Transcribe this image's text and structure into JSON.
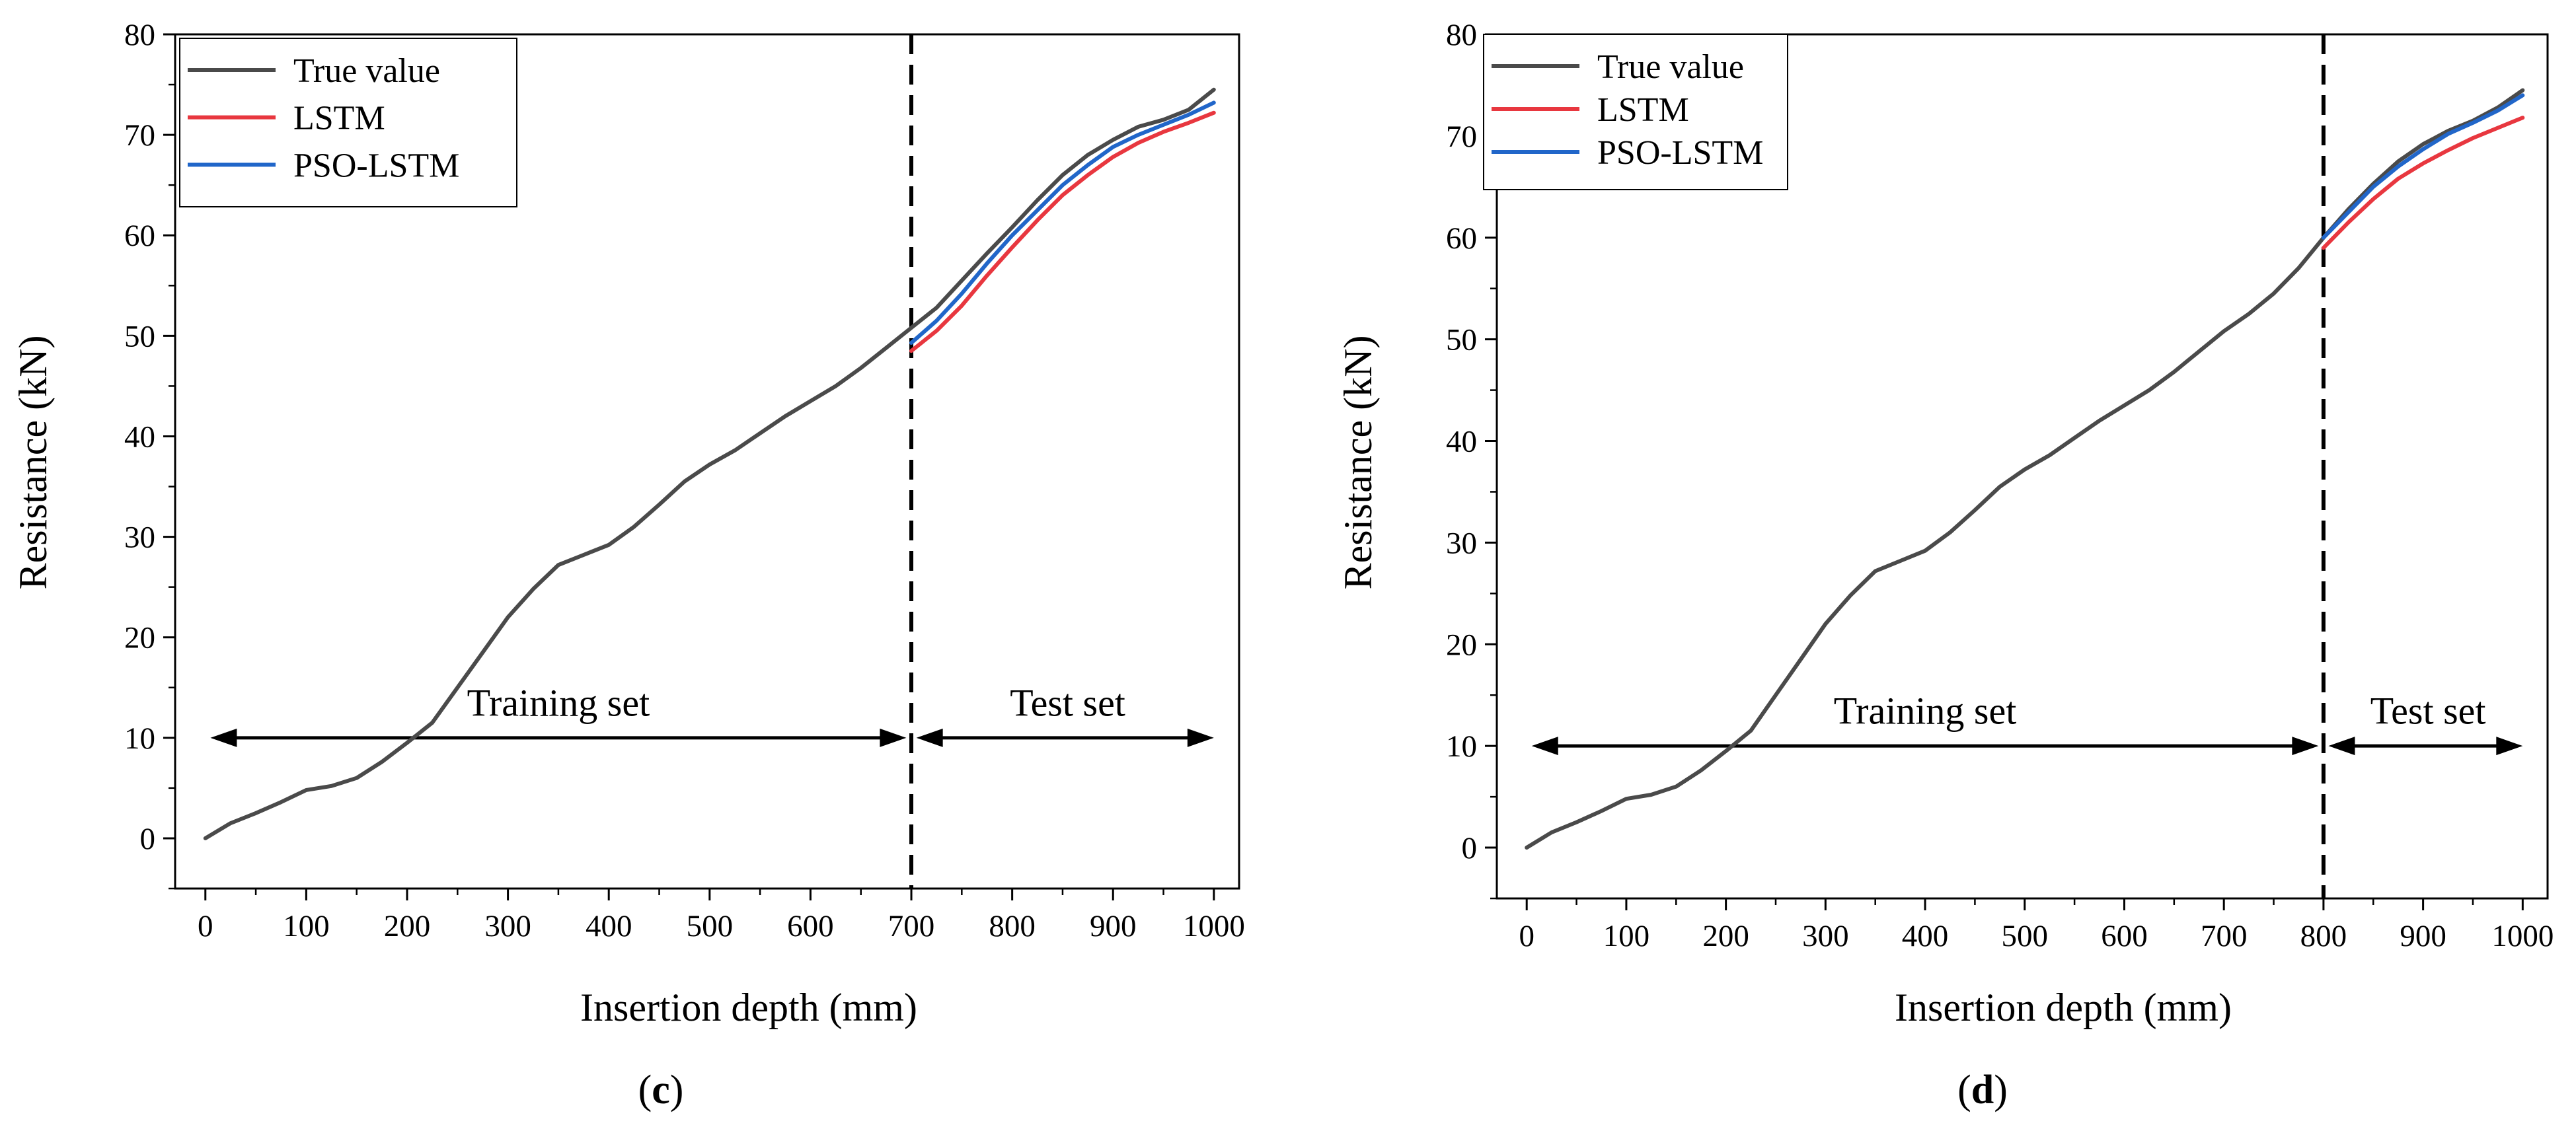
{
  "colors": {
    "true_value": "#4a4a4a",
    "lstm": "#e8373f",
    "pso_lstm": "#2166c9",
    "axis": "#000000"
  },
  "chart_data": [
    {
      "panel": "c",
      "panel_label": [
        "(",
        "c",
        ")"
      ],
      "type": "line",
      "xlabel": "Insertion depth (mm)",
      "ylabel": "Resistance (kN)",
      "xlim": [
        -30,
        1025
      ],
      "ylim": [
        -5,
        80
      ],
      "xticks": [
        0,
        100,
        200,
        300,
        400,
        500,
        600,
        700,
        800,
        900,
        1000
      ],
      "yticks": [
        0,
        10,
        20,
        30,
        40,
        50,
        60,
        70,
        80
      ],
      "legend": {
        "position": "top-left",
        "entries": [
          "True value",
          "LSTM",
          "PSO-LSTM"
        ]
      },
      "split_x": 700,
      "annotations": [
        {
          "text": "Training set",
          "x": 350,
          "y": 12.2,
          "arrow_from": 5,
          "arrow_to": 695,
          "arrow_y": 10
        },
        {
          "text": "Test set",
          "x": 855,
          "y": 12.2,
          "arrow_from": 705,
          "arrow_to": 1000,
          "arrow_y": 10
        }
      ],
      "series": [
        {
          "name": "True value",
          "x": [
            0,
            25,
            50,
            75,
            100,
            125,
            150,
            175,
            200,
            225,
            250,
            275,
            300,
            325,
            350,
            375,
            400,
            425,
            450,
            475,
            500,
            525,
            550,
            575,
            600,
            625,
            650,
            675,
            700,
            725,
            750,
            775,
            800,
            825,
            850,
            875,
            900,
            925,
            950,
            975,
            1000
          ],
          "y": [
            0,
            1.5,
            2.5,
            3.6,
            4.8,
            5.2,
            6.0,
            7.6,
            9.5,
            11.5,
            15.0,
            18.5,
            22.0,
            24.8,
            27.2,
            28.2,
            29.2,
            31.0,
            33.2,
            35.5,
            37.2,
            38.6,
            40.3,
            42.0,
            43.5,
            45.0,
            46.8,
            48.8,
            50.8,
            52.8,
            55.5,
            58.2,
            60.8,
            63.5,
            66.0,
            68.0,
            69.5,
            70.8,
            71.5,
            72.5,
            74.5
          ]
        },
        {
          "name": "LSTM",
          "x": [
            700,
            725,
            750,
            775,
            800,
            825,
            850,
            875,
            900,
            925,
            950,
            975,
            1000
          ],
          "y": [
            48.5,
            50.5,
            53.0,
            56.0,
            58.8,
            61.5,
            64.0,
            66.0,
            67.8,
            69.2,
            70.3,
            71.2,
            72.2
          ]
        },
        {
          "name": "PSO-LSTM",
          "x": [
            700,
            725,
            750,
            775,
            800,
            825,
            850,
            875,
            900,
            925,
            950,
            975,
            1000
          ],
          "y": [
            49.3,
            51.5,
            54.2,
            57.2,
            60.0,
            62.5,
            65.0,
            67.0,
            68.8,
            70.0,
            71.0,
            72.0,
            73.2
          ]
        }
      ]
    },
    {
      "panel": "d",
      "panel_label": [
        "(",
        "d",
        ")"
      ],
      "type": "line",
      "xlabel": "Insertion depth (mm)",
      "ylabel": "Resistance (kN)",
      "xlim": [
        -30,
        1025
      ],
      "ylim": [
        -5,
        80
      ],
      "xticks": [
        0,
        100,
        200,
        300,
        400,
        500,
        600,
        700,
        800,
        900,
        1000
      ],
      "yticks": [
        0,
        10,
        20,
        30,
        40,
        50,
        60,
        70,
        80
      ],
      "legend": {
        "position": "top-left",
        "entries": [
          "True value",
          "LSTM",
          "PSO-LSTM"
        ]
      },
      "split_x": 800,
      "annotations": [
        {
          "text": "Training set",
          "x": 400,
          "y": 12.2,
          "arrow_from": 5,
          "arrow_to": 795,
          "arrow_y": 10
        },
        {
          "text": "Test set",
          "x": 905,
          "y": 12.2,
          "arrow_from": 805,
          "arrow_to": 1000,
          "arrow_y": 10
        }
      ],
      "series": [
        {
          "name": "True value",
          "x": [
            0,
            25,
            50,
            75,
            100,
            125,
            150,
            175,
            200,
            225,
            250,
            275,
            300,
            325,
            350,
            375,
            400,
            425,
            450,
            475,
            500,
            525,
            550,
            575,
            600,
            625,
            650,
            675,
            700,
            725,
            750,
            775,
            800,
            825,
            850,
            875,
            900,
            925,
            950,
            975,
            1000
          ],
          "y": [
            0,
            1.5,
            2.5,
            3.6,
            4.8,
            5.2,
            6.0,
            7.6,
            9.5,
            11.5,
            15.0,
            18.5,
            22.0,
            24.8,
            27.2,
            28.2,
            29.2,
            31.0,
            33.2,
            35.5,
            37.2,
            38.6,
            40.3,
            42.0,
            43.5,
            45.0,
            46.8,
            48.8,
            50.8,
            52.5,
            54.5,
            57.0,
            60.0,
            62.8,
            65.3,
            67.5,
            69.2,
            70.5,
            71.5,
            72.8,
            74.5
          ]
        },
        {
          "name": "LSTM",
          "x": [
            800,
            825,
            850,
            875,
            900,
            925,
            950,
            975,
            1000
          ],
          "y": [
            59.0,
            61.5,
            63.8,
            65.8,
            67.3,
            68.6,
            69.8,
            70.8,
            71.8
          ]
        },
        {
          "name": "PSO-LSTM",
          "x": [
            800,
            825,
            850,
            875,
            900,
            925,
            950,
            975,
            1000
          ],
          "y": [
            60.0,
            62.5,
            65.0,
            67.0,
            68.7,
            70.2,
            71.3,
            72.5,
            74.0
          ]
        }
      ]
    }
  ]
}
